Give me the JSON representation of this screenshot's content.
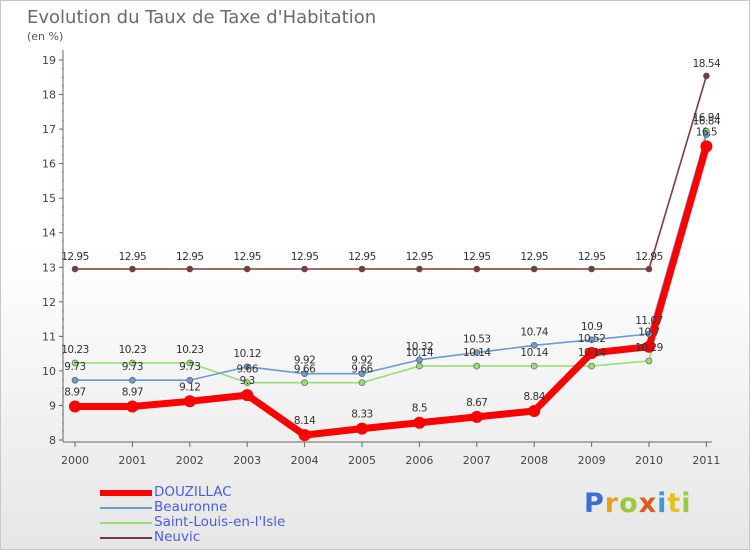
{
  "chart_data": {
    "type": "line",
    "title": "Evolution du Taux de Taxe d'Habitation",
    "subtitle": "(en %)",
    "xlabel": "",
    "ylabel": "",
    "categories": [
      "2000",
      "2001",
      "2002",
      "2003",
      "2004",
      "2005",
      "2006",
      "2007",
      "2008",
      "2009",
      "2010",
      "2011"
    ],
    "ylim": [
      8,
      19
    ],
    "yticks": [
      "8",
      "9",
      "10",
      "11",
      "12",
      "13",
      "14",
      "15",
      "16",
      "17",
      "18",
      "19"
    ],
    "series": [
      {
        "name": "DOUZILLAC",
        "color": "#ff0000",
        "values": [
          8.97,
          8.97,
          9.12,
          9.3,
          8.14,
          8.33,
          8.5,
          8.67,
          8.84,
          10.52,
          10.7,
          16.5
        ],
        "labels": [
          "8.97",
          "8.97",
          "9.12",
          "9.3",
          "8.14",
          "8.33",
          "8.5",
          "8.67",
          "8.84",
          "10.52",
          "10.7",
          "16.5"
        ]
      },
      {
        "name": "Beauronne",
        "color": "#6b9bd0",
        "values": [
          9.73,
          9.73,
          9.73,
          10.12,
          9.92,
          9.92,
          10.32,
          10.53,
          10.74,
          10.9,
          11.07,
          16.84
        ],
        "labels": [
          "9.73",
          "9.73",
          "9.73",
          "10.12",
          "9.92",
          "9.92",
          "10.32",
          "10.53",
          "10.74",
          "10.9",
          "11.07",
          "16.84"
        ]
      },
      {
        "name": "Saint-Louis-en-l'Isle",
        "color": "#99dd77",
        "values": [
          10.23,
          10.23,
          10.23,
          9.66,
          9.66,
          9.66,
          10.14,
          10.14,
          10.14,
          10.14,
          10.29,
          16.94
        ],
        "labels": [
          "10.23",
          "10.23",
          "10.23",
          "9.66",
          "9.66",
          "9.66",
          "10.14",
          "10.14",
          "10.14",
          "10.14",
          "10.29",
          "16.94"
        ]
      },
      {
        "name": "Neuvic",
        "color": "#7a3d3d",
        "values": [
          12.95,
          12.95,
          12.95,
          12.95,
          12.95,
          12.95,
          12.95,
          12.95,
          12.95,
          12.95,
          12.95,
          18.54
        ],
        "labels": [
          "12.95",
          "12.95",
          "12.95",
          "12.95",
          "12.95",
          "12.95",
          "12.95",
          "12.95",
          "12.95",
          "12.95",
          "12.95",
          "18.54"
        ]
      }
    ],
    "legend_position": "bottom-left",
    "grid": false
  },
  "legend": {
    "items": [
      "DOUZILLAC",
      "Beauronne",
      "Saint-Louis-en-l'Isle",
      "Neuvic"
    ],
    "text_color": "#4a5ee0"
  },
  "logo": {
    "letters": [
      "P",
      "r",
      "o",
      "x",
      "i",
      "t",
      "i"
    ],
    "colors": [
      "#3a6fcf",
      "#e8a020",
      "#9cc83a",
      "#e05a20",
      "#3a9ad8",
      "#e8c020",
      "#9cc83a"
    ]
  }
}
